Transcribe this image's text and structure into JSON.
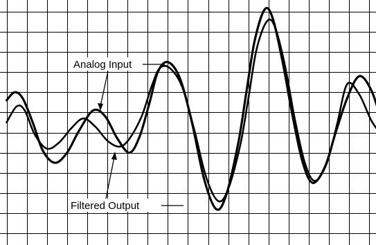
{
  "chart_data": {
    "type": "line",
    "title": "",
    "xlabel": "",
    "ylabel": "",
    "grid": true,
    "legend": "none",
    "annotations": [
      "Analog Input",
      "Filtered Output"
    ],
    "series": [
      {
        "name": "Analog Input",
        "color": "#000000",
        "x": [
          0,
          0.4,
          0.8,
          1.3,
          1.8,
          2.4,
          3.0,
          3.6,
          4.3,
          4.9,
          5.5,
          6.1,
          6.6,
          7.1,
          7.5,
          8.0,
          8.6,
          9.2,
          9.8,
          10.4,
          10.9,
          11.5,
          11.9,
          12.3,
          12.8,
          13.2,
          13.7,
          14.2,
          14.7,
          15.2,
          15.8,
          16.3,
          16.9,
          17.5,
          18.1,
          18.6
        ],
        "y": [
          1.1,
          1.5,
          1.2,
          0.0,
          -1.4,
          -2.0,
          -1.5,
          -0.4,
          0.6,
          0.3,
          -0.8,
          -1.5,
          -0.7,
          1.0,
          2.5,
          3.0,
          2.2,
          0.0,
          -2.8,
          -4.3,
          -3.6,
          -1.0,
          1.5,
          4.0,
          5.6,
          5.2,
          3.0,
          0.3,
          -2.0,
          -3.0,
          -2.2,
          -0.6,
          1.2,
          2.3,
          1.6,
          0.1
        ]
      },
      {
        "name": "Filtered Output",
        "color": "#000000",
        "x": [
          0,
          0.5,
          0.9,
          1.4,
          2.0,
          2.6,
          3.2,
          3.8,
          4.4,
          5.0,
          5.6,
          6.1,
          6.7,
          7.2,
          7.6,
          8.1,
          8.7,
          9.3,
          9.9,
          10.5,
          11.0,
          11.6,
          12.0,
          12.4,
          12.9,
          13.3,
          13.8,
          14.3,
          14.8,
          15.3,
          15.9,
          16.4,
          16.9,
          17.5,
          18.1,
          18.6
        ],
        "y": [
          0.0,
          0.8,
          0.6,
          -0.6,
          -1.3,
          -1.0,
          -0.3,
          0.2,
          -0.2,
          -0.9,
          -1.2,
          -0.8,
          0.3,
          1.8,
          2.7,
          2.7,
          1.8,
          -0.3,
          -2.7,
          -3.9,
          -3.3,
          -1.1,
          1.2,
          3.6,
          5.0,
          4.8,
          2.9,
          0.2,
          -2.0,
          -2.9,
          -2.0,
          -0.1,
          1.9,
          1.4,
          0.1,
          -0.6
        ]
      }
    ],
    "xlim": [
      0,
      18.6
    ],
    "ylim": [
      -6.5,
      6.5
    ],
    "x_grid_step": 1.0,
    "y_grid_step": 1.0
  }
}
